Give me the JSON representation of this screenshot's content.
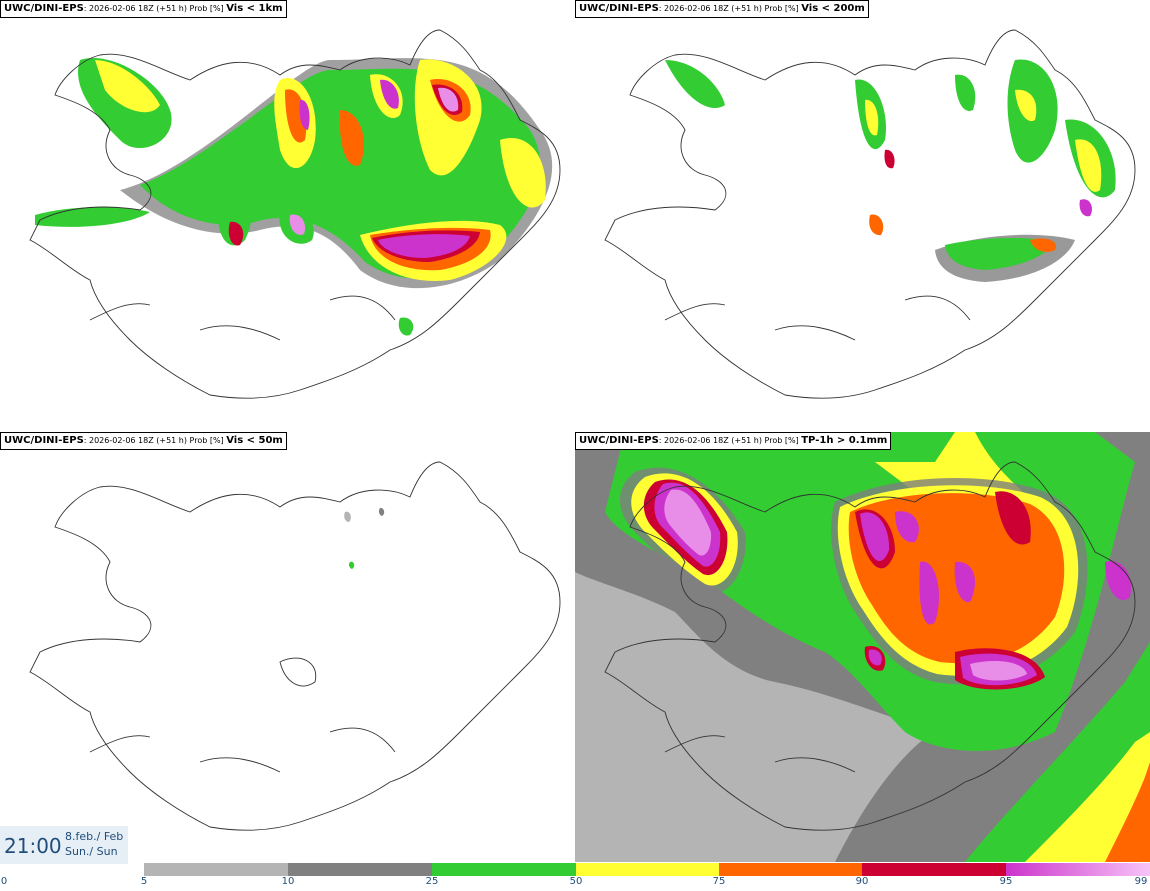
{
  "panels": [
    {
      "source": "UWC/DINI-EPS",
      "meta": ": 2026-02-06 18Z (+51 h) Prob [%] ",
      "variable": "Vis < 1km"
    },
    {
      "source": "UWC/DINI-EPS",
      "meta": ": 2026-02-06 18Z (+51 h) Prob [%] ",
      "variable": "Vis < 200m"
    },
    {
      "source": "UWC/DINI-EPS",
      "meta": ": 2026-02-06 18Z (+51 h) Prob [%] ",
      "variable": "Vis < 50m"
    },
    {
      "source": "UWC/DINI-EPS",
      "meta": ": 2026-02-06 18Z (+51 h) Prob [%] ",
      "variable": "TP-1h > 0.1mm"
    }
  ],
  "time": {
    "clock": "21:00",
    "date_line": "8.feb./ Feb",
    "day_line": "Sun./ Sun"
  },
  "legend": {
    "ticks": [
      "0",
      "5",
      "10",
      "25",
      "50",
      "75",
      "90",
      "95",
      "99"
    ],
    "colors": {
      "5-10": "#b4b4b4",
      "10-25": "#808080",
      "25-50": "#33cc33",
      "50-75": "#ffff33",
      "75-90": "#ff6600",
      "90-95": "#cc0033",
      "95-99": "#cc33cc"
    }
  }
}
